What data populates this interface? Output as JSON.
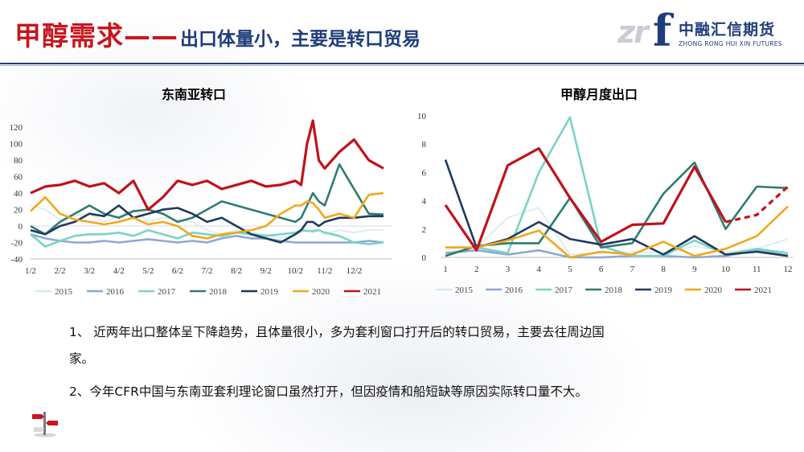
{
  "title": {
    "main": "甲醇需求——",
    "sub": "出口体量小，主要是转口贸易"
  },
  "logo": {
    "cn": "中融汇信期货",
    "en": "ZHONG RONG HUI XIN FUTURES"
  },
  "colors": {
    "title_red": "#c8161e",
    "title_blue": "#1f3d7a",
    "s2015": "#d6e9f2",
    "s2016": "#8ea9d0",
    "s2017": "#79d4c6",
    "s2018": "#2f7b73",
    "s2019": "#1e3a5c",
    "s2020": "#f2a71b",
    "s2021": "#c0121a"
  },
  "chart_data": [
    {
      "type": "line",
      "title": "东南亚转口",
      "xlabel": "",
      "ylabel": "",
      "x_ticks": [
        "1/2",
        "2/2",
        "3/2",
        "4/2",
        "5/2",
        "6/2",
        "7/2",
        "8/2",
        "9/2",
        "10/2",
        "11/2",
        "12/2"
      ],
      "ylim": [
        -40,
        130
      ],
      "y_ticks": [
        "-40",
        "-20",
        "0",
        "20",
        "40",
        "60",
        "80",
        "100",
        "120"
      ],
      "grid": false,
      "legend": "bottom",
      "x": [
        0,
        0.5,
        1,
        1.5,
        2,
        2.5,
        3,
        3.5,
        4,
        4.5,
        5,
        5.5,
        6,
        6.5,
        7,
        7.5,
        8,
        8.5,
        9,
        9.2,
        9.4,
        9.6,
        9.8,
        10,
        10.5,
        11,
        11.5,
        12
      ],
      "series": [
        {
          "name": "2015",
          "values": [
            25,
            20,
            8,
            12,
            15,
            5,
            12,
            20,
            5,
            10,
            8,
            5,
            -5,
            -10,
            -5,
            -8,
            -10,
            -15,
            -10,
            -8,
            -5,
            -8,
            -5,
            -10,
            -5,
            -8,
            -5,
            -5
          ]
        },
        {
          "name": "2016",
          "values": [
            -10,
            -15,
            -18,
            -20,
            -20,
            -18,
            -20,
            -18,
            -16,
            -18,
            -20,
            -18,
            -20,
            -15,
            -12,
            -15,
            -15,
            -18,
            -20,
            -20,
            -20,
            -20,
            -20,
            -20,
            -20,
            -20,
            -18,
            -20
          ]
        },
        {
          "name": "2017",
          "values": [
            -10,
            -25,
            -18,
            -12,
            -10,
            -10,
            -8,
            -12,
            -5,
            -10,
            -15,
            -8,
            -10,
            -12,
            -8,
            -10,
            -12,
            -10,
            -8,
            -5,
            -6,
            -6,
            -5,
            -8,
            -12,
            -20,
            -22,
            -20
          ]
        },
        {
          "name": "2018",
          "values": [
            0,
            -10,
            5,
            15,
            25,
            15,
            10,
            18,
            20,
            15,
            5,
            10,
            20,
            30,
            25,
            20,
            15,
            10,
            5,
            10,
            25,
            40,
            30,
            25,
            75,
            45,
            15,
            14
          ]
        },
        {
          "name": "2019",
          "values": [
            -5,
            -10,
            0,
            5,
            15,
            12,
            25,
            10,
            15,
            20,
            22,
            15,
            5,
            10,
            0,
            -10,
            -15,
            -20,
            -10,
            -5,
            5,
            5,
            0,
            5,
            10,
            10,
            12,
            12
          ]
        },
        {
          "name": "2020",
          "values": [
            18,
            35,
            15,
            8,
            5,
            2,
            5,
            10,
            2,
            5,
            0,
            -12,
            -15,
            -10,
            -8,
            -5,
            0,
            15,
            25,
            25,
            30,
            28,
            20,
            10,
            15,
            10,
            38,
            40
          ]
        },
        {
          "name": "2021",
          "values": [
            40,
            48,
            50,
            55,
            48,
            52,
            40,
            55,
            20,
            35,
            55,
            50,
            55,
            45,
            50,
            55,
            48,
            50,
            55,
            50,
            100,
            128,
            80,
            70,
            90,
            105,
            80,
            70
          ]
        }
      ]
    },
    {
      "type": "line",
      "title": "甲醇月度出口",
      "xlabel": "",
      "ylabel": "",
      "categories": [
        "1",
        "2",
        "3",
        "4",
        "5",
        "6",
        "7",
        "8",
        "9",
        "10",
        "11",
        "12"
      ],
      "ylim": [
        0,
        10
      ],
      "y_ticks": [
        "0",
        "2",
        "4",
        "6",
        "8",
        "10"
      ],
      "grid": false,
      "legend": "bottom",
      "series": [
        {
          "name": "2015",
          "values": [
            0.3,
            0.7,
            2.8,
            3.5,
            0.2,
            0.3,
            0.4,
            0.3,
            0.8,
            0.4,
            0.6,
            1.3
          ]
        },
        {
          "name": "2016",
          "values": [
            0.3,
            0.5,
            0.2,
            0.5,
            0.0,
            0.0,
            0.1,
            0.1,
            0.0,
            0.1,
            0.5,
            0.1
          ]
        },
        {
          "name": "2017",
          "values": [
            0.7,
            0.7,
            0.3,
            6.0,
            9.9,
            0.8,
            0.1,
            0.1,
            1.2,
            0.2,
            0.6,
            0.3
          ]
        },
        {
          "name": "2018",
          "values": [
            0.1,
            0.8,
            1.0,
            1.0,
            4.2,
            0.7,
            1.0,
            4.5,
            6.7,
            2.0,
            5.0,
            4.9
          ]
        },
        {
          "name": "2019",
          "values": [
            6.9,
            0.7,
            1.3,
            2.5,
            1.3,
            0.9,
            1.3,
            0.2,
            1.5,
            0.2,
            0.4,
            0.1
          ]
        },
        {
          "name": "2020",
          "values": [
            0.7,
            0.7,
            1.2,
            1.9,
            0.0,
            0.4,
            0.2,
            1.1,
            0.1,
            0.6,
            1.5,
            3.6
          ]
        },
        {
          "name": "2021",
          "values": [
            3.7,
            0.5,
            6.5,
            7.7,
            4.2,
            1.1,
            2.3,
            2.4,
            6.4,
            2.5,
            3.0,
            5.0
          ]
        }
      ],
      "dashed_segment": {
        "series": "2021",
        "from_index": 9
      }
    }
  ],
  "paragraphs": {
    "p1_line1": "1、  近两年出口整体呈下降趋势，且体量很小，多为套利窗口打开后的转口贸易，主要去往周边国",
    "p1_line2": "家。",
    "p2": "2、今年CFR中国与东南亚套利理论窗口虽然打开，但因疫情和船短缺等原因实际转口量不大。"
  }
}
